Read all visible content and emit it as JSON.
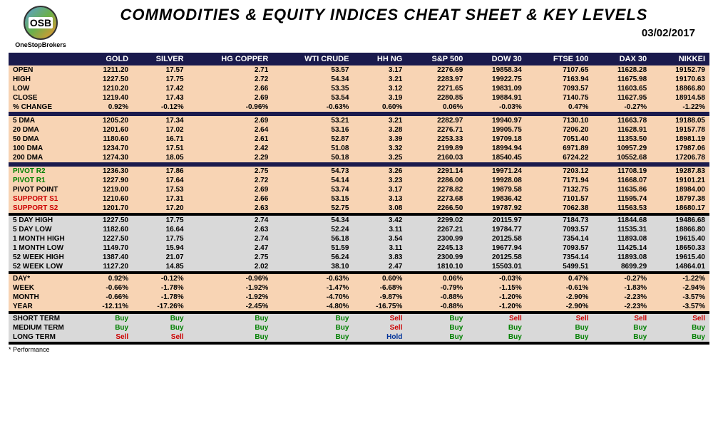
{
  "header": {
    "logo_abbr": "OSB",
    "logo_name": "OneStopBrokers",
    "title": "COMMODITIES & EQUITY INDICES CHEAT SHEET & KEY LEVELS",
    "date": "03/02/2017"
  },
  "columns": [
    "GOLD",
    "SILVER",
    "HG COPPER",
    "WTI CRUDE",
    "HH NG",
    "S&P 500",
    "DOW 30",
    "FTSE 100",
    "DAX 30",
    "NIKKEI"
  ],
  "sections": [
    {
      "bg": "peach",
      "rows": [
        {
          "label": "OPEN",
          "vals": [
            "1211.20",
            "17.57",
            "2.71",
            "53.57",
            "3.17",
            "2276.69",
            "19858.34",
            "7107.65",
            "11628.28",
            "19152.79"
          ]
        },
        {
          "label": "HIGH",
          "vals": [
            "1227.50",
            "17.75",
            "2.72",
            "54.34",
            "3.21",
            "2283.97",
            "19922.75",
            "7163.94",
            "11675.98",
            "19170.63"
          ]
        },
        {
          "label": "LOW",
          "vals": [
            "1210.20",
            "17.42",
            "2.66",
            "53.35",
            "3.12",
            "2271.65",
            "19831.09",
            "7093.57",
            "11603.65",
            "18866.80"
          ]
        },
        {
          "label": "CLOSE",
          "vals": [
            "1219.40",
            "17.43",
            "2.69",
            "53.54",
            "3.19",
            "2280.85",
            "19884.91",
            "7140.75",
            "11627.95",
            "18914.58"
          ]
        },
        {
          "label": "% CHANGE",
          "vals": [
            "0.92%",
            "-0.12%",
            "-0.96%",
            "-0.63%",
            "0.60%",
            "0.06%",
            "-0.03%",
            "0.47%",
            "-0.27%",
            "-1.22%"
          ]
        }
      ]
    },
    {
      "bg": "peach",
      "rows": [
        {
          "label": "5 DMA",
          "vals": [
            "1205.20",
            "17.34",
            "2.69",
            "53.21",
            "3.21",
            "2282.97",
            "19940.97",
            "7130.10",
            "11663.78",
            "19188.05"
          ]
        },
        {
          "label": "20 DMA",
          "vals": [
            "1201.60",
            "17.02",
            "2.64",
            "53.16",
            "3.28",
            "2276.71",
            "19905.75",
            "7206.20",
            "11628.91",
            "19157.78"
          ]
        },
        {
          "label": "50 DMA",
          "vals": [
            "1180.60",
            "16.71",
            "2.61",
            "52.87",
            "3.39",
            "2253.33",
            "19709.18",
            "7051.40",
            "11353.50",
            "18981.19"
          ]
        },
        {
          "label": "100 DMA",
          "vals": [
            "1234.70",
            "17.51",
            "2.42",
            "51.08",
            "3.32",
            "2199.89",
            "18994.94",
            "6971.89",
            "10957.29",
            "17987.06"
          ]
        },
        {
          "label": "200 DMA",
          "vals": [
            "1274.30",
            "18.05",
            "2.29",
            "50.18",
            "3.25",
            "2160.03",
            "18540.45",
            "6724.22",
            "10552.68",
            "17206.78"
          ]
        }
      ]
    },
    {
      "bg": "peach",
      "rows": [
        {
          "label": "PIVOT R2",
          "labelClass": "lbl-green",
          "vals": [
            "1236.30",
            "17.86",
            "2.75",
            "54.73",
            "3.26",
            "2291.14",
            "19971.24",
            "7203.12",
            "11708.19",
            "19287.83"
          ]
        },
        {
          "label": "PIVOT R1",
          "labelClass": "lbl-green",
          "vals": [
            "1227.90",
            "17.64",
            "2.72",
            "54.14",
            "3.23",
            "2286.00",
            "19928.08",
            "7171.94",
            "11668.07",
            "19101.21"
          ]
        },
        {
          "label": "PIVOT POINT",
          "vals": [
            "1219.00",
            "17.53",
            "2.69",
            "53.74",
            "3.17",
            "2278.82",
            "19879.58",
            "7132.75",
            "11635.86",
            "18984.00"
          ]
        },
        {
          "label": "SUPPORT S1",
          "labelClass": "lbl-red",
          "vals": [
            "1210.60",
            "17.31",
            "2.66",
            "53.15",
            "3.13",
            "2273.68",
            "19836.42",
            "7101.57",
            "11595.74",
            "18797.38"
          ]
        },
        {
          "label": "SUPPORT S2",
          "labelClass": "lbl-red",
          "vals": [
            "1201.70",
            "17.20",
            "2.63",
            "52.75",
            "3.08",
            "2266.50",
            "19787.92",
            "7062.38",
            "11563.53",
            "18680.17"
          ]
        }
      ]
    },
    {
      "bg": "gray",
      "rows": [
        {
          "label": "5 DAY HIGH",
          "vals": [
            "1227.50",
            "17.75",
            "2.74",
            "54.34",
            "3.42",
            "2299.02",
            "20115.97",
            "7184.73",
            "11844.68",
            "19486.68"
          ]
        },
        {
          "label": "5 DAY LOW",
          "vals": [
            "1182.60",
            "16.64",
            "2.63",
            "52.24",
            "3.11",
            "2267.21",
            "19784.77",
            "7093.57",
            "11535.31",
            "18866.80"
          ]
        },
        {
          "label": "1 MONTH HIGH",
          "vals": [
            "1227.50",
            "17.75",
            "2.74",
            "56.18",
            "3.54",
            "2300.99",
            "20125.58",
            "7354.14",
            "11893.08",
            "19615.40"
          ]
        },
        {
          "label": "1 MONTH LOW",
          "vals": [
            "1149.70",
            "15.94",
            "2.47",
            "51.59",
            "3.11",
            "2245.13",
            "19677.94",
            "7093.57",
            "11425.14",
            "18650.33"
          ]
        },
        {
          "label": "52 WEEK HIGH",
          "vals": [
            "1387.40",
            "21.07",
            "2.75",
            "56.24",
            "3.83",
            "2300.99",
            "20125.58",
            "7354.14",
            "11893.08",
            "19615.40"
          ]
        },
        {
          "label": "52 WEEK LOW",
          "vals": [
            "1127.20",
            "14.85",
            "2.02",
            "38.10",
            "2.47",
            "1810.10",
            "15503.01",
            "5499.51",
            "8699.29",
            "14864.01"
          ]
        }
      ]
    },
    {
      "bg": "peach",
      "rows": [
        {
          "label": "DAY*",
          "vals": [
            "0.92%",
            "-0.12%",
            "-0.96%",
            "-0.63%",
            "0.60%",
            "0.06%",
            "-0.03%",
            "0.47%",
            "-0.27%",
            "-1.22%"
          ]
        },
        {
          "label": "WEEK",
          "vals": [
            "-0.66%",
            "-1.78%",
            "-1.92%",
            "-1.47%",
            "-6.68%",
            "-0.79%",
            "-1.15%",
            "-0.61%",
            "-1.83%",
            "-2.94%"
          ]
        },
        {
          "label": "MONTH",
          "vals": [
            "-0.66%",
            "-1.78%",
            "-1.92%",
            "-4.70%",
            "-9.87%",
            "-0.88%",
            "-1.20%",
            "-2.90%",
            "-2.23%",
            "-3.57%"
          ]
        },
        {
          "label": "YEAR",
          "vals": [
            "-12.11%",
            "-17.26%",
            "-2.45%",
            "-4.80%",
            "-16.75%",
            "-0.88%",
            "-1.20%",
            "-2.90%",
            "-2.23%",
            "-3.57%"
          ]
        }
      ]
    },
    {
      "bg": "gray",
      "rows": [
        {
          "label": "SHORT TERM",
          "signals": [
            "Buy",
            "Buy",
            "Buy",
            "Buy",
            "Sell",
            "Buy",
            "Sell",
            "Sell",
            "Sell",
            "Sell"
          ]
        },
        {
          "label": "MEDIUM TERM",
          "signals": [
            "Buy",
            "Buy",
            "Buy",
            "Buy",
            "Sell",
            "Buy",
            "Buy",
            "Buy",
            "Buy",
            "Buy"
          ]
        },
        {
          "label": "LONG TERM",
          "signals": [
            "Sell",
            "Sell",
            "Buy",
            "Buy",
            "Hold",
            "Buy",
            "Buy",
            "Buy",
            "Buy",
            "Buy"
          ]
        }
      ]
    }
  ],
  "footnote": "* Performance",
  "signal_colors": {
    "Buy": "val-green",
    "Sell": "val-red",
    "Hold": "val-blue"
  }
}
